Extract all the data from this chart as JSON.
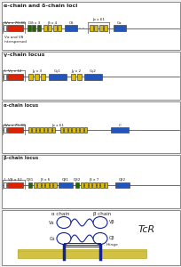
{
  "bg_color": "#f0f0f0",
  "panel_bg": "#ffffff",
  "sections": [
    {
      "title": "α-chain and δ-chain loci",
      "subtitle": "Vα and Vδ\ninterspersed",
      "row": 0
    },
    {
      "title": "γ-chain locus",
      "row": 1
    },
    {
      "title": "α-chain locus",
      "row": 2
    },
    {
      "title": "β-chain locus",
      "row": 3
    }
  ],
  "tcr_title": "TcR",
  "tcr_alpha": "α chain",
  "tcr_beta": "β chain",
  "tcr_Va": "Vα",
  "tcr_Vb": "Vβ",
  "tcr_Ca": "Cα",
  "tcr_Cb": "Cβ",
  "tcr_hinge": "- Hinge",
  "red_color": "#dd2200",
  "green_color": "#226600",
  "yellow_color": "#ddbb00",
  "blue_color": "#2255bb",
  "white_color": "#ffffff",
  "line_color": "#555555",
  "text_color": "#222222",
  "membrane_color": "#ddcc55",
  "protein_color": "#112299"
}
